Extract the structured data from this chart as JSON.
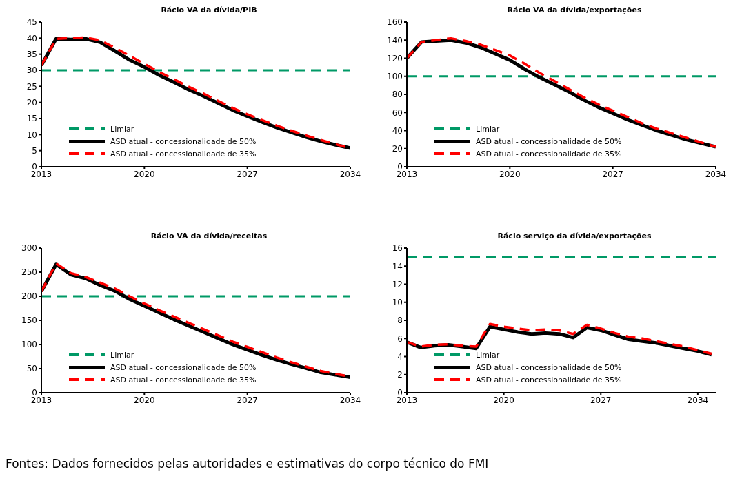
{
  "chart_data": [
    {
      "type": "line",
      "title": "Rácio VA da dívida/PIB",
      "x": [
        2013,
        2014,
        2015,
        2016,
        2017,
        2018,
        2019,
        2020,
        2021,
        2022,
        2023,
        2024,
        2025,
        2026,
        2027,
        2028,
        2029,
        2030,
        2031,
        2032,
        2033,
        2034
      ],
      "xlim": [
        2013,
        2034
      ],
      "xticks": [
        2013,
        2020,
        2027,
        2034
      ],
      "ylim": [
        0,
        45
      ],
      "yticks": [
        0,
        5,
        10,
        15,
        20,
        25,
        30,
        35,
        40,
        45
      ],
      "grid": false,
      "marker": "none",
      "legend": "bottom left",
      "ref_lines": [
        {
          "axis": "y",
          "value": 30,
          "label": "Limiar",
          "color": "#009966",
          "line_style": "dashed"
        }
      ],
      "series": [
        {
          "name": "ASD atual - concessionalidade de 50%",
          "color": "#000000",
          "line_style": "solid",
          "values": [
            31.5,
            39.8,
            39.6,
            39.8,
            38.7,
            36,
            33.2,
            31,
            28.5,
            26.3,
            24,
            22,
            19.8,
            17.6,
            15.7,
            13.9,
            12.2,
            10.7,
            9.2,
            7.9,
            6.8,
            5.8
          ]
        },
        {
          "name": "ASD atual - concessionalidade de 35%",
          "color": "#ff0000",
          "line_style": "dashed",
          "values": [
            31.5,
            39.8,
            40,
            40.2,
            39.3,
            37,
            34.5,
            32,
            29.5,
            27.2,
            24.9,
            22.8,
            20.5,
            18.3,
            16.3,
            14.5,
            12.8,
            11.2,
            9.7,
            8.3,
            7,
            5.8
          ]
        }
      ]
    },
    {
      "type": "line",
      "title": "Rácio VA da dívida/exportações",
      "x": [
        2013,
        2014,
        2015,
        2016,
        2017,
        2018,
        2019,
        2020,
        2021,
        2022,
        2023,
        2024,
        2025,
        2026,
        2027,
        2028,
        2029,
        2030,
        2031,
        2032,
        2033,
        2034
      ],
      "xlim": [
        2013,
        2034
      ],
      "xticks": [
        2013,
        2020,
        2027,
        2034
      ],
      "ylim": [
        0,
        160
      ],
      "yticks": [
        0,
        20,
        40,
        60,
        80,
        100,
        120,
        140,
        160
      ],
      "grid": false,
      "marker": "none",
      "legend": "bottom left",
      "ref_lines": [
        {
          "axis": "y",
          "value": 100,
          "label": "Limiar",
          "color": "#009966",
          "line_style": "dashed"
        }
      ],
      "series": [
        {
          "name": "ASD atual - concessionalidade de 50%",
          "color": "#000000",
          "line_style": "solid",
          "values": [
            120,
            138,
            139,
            140,
            137,
            132,
            125,
            118,
            108,
            99,
            91,
            83,
            74,
            66,
            59,
            52,
            46,
            40,
            35,
            30,
            26,
            22
          ]
        },
        {
          "name": "ASD atual - concessionalidade de 35%",
          "color": "#ff0000",
          "line_style": "dashed",
          "values": [
            120,
            138,
            140,
            142,
            139,
            135,
            129,
            123,
            114,
            104,
            95,
            86,
            77,
            69,
            62,
            55,
            48,
            42,
            37,
            32,
            27,
            22
          ]
        }
      ]
    },
    {
      "type": "line",
      "title": "Rácio VA da dívida/receitas",
      "x": [
        2013,
        2014,
        2015,
        2016,
        2017,
        2018,
        2019,
        2020,
        2021,
        2022,
        2023,
        2024,
        2025,
        2026,
        2027,
        2028,
        2029,
        2030,
        2031,
        2032,
        2033,
        2034
      ],
      "xlim": [
        2013,
        2034
      ],
      "xticks": [
        2013,
        2020,
        2027,
        2034
      ],
      "ylim": [
        0,
        300
      ],
      "yticks": [
        0,
        50,
        100,
        150,
        200,
        250,
        300
      ],
      "grid": false,
      "marker": "none",
      "legend": "bottom left",
      "ref_lines": [
        {
          "axis": "y",
          "value": 200,
          "label": "Limiar",
          "color": "#009966",
          "line_style": "dashed"
        }
      ],
      "series": [
        {
          "name": "ASD atual - concessionalidade de 50%",
          "color": "#000000",
          "line_style": "solid",
          "values": [
            210,
            266,
            245,
            237,
            223,
            211,
            194,
            180,
            166,
            152,
            139,
            126,
            113,
            100,
            89,
            78,
            68,
            59,
            51,
            42,
            37,
            32
          ]
        },
        {
          "name": "ASD atual - concessionalidade de 35%",
          "color": "#ff0000",
          "line_style": "dashed",
          "values": [
            210,
            268,
            248,
            240,
            228,
            216,
            200,
            185,
            171,
            158,
            145,
            132,
            119,
            106,
            95,
            84,
            73,
            63,
            54,
            45,
            39,
            33
          ]
        }
      ]
    },
    {
      "type": "line",
      "title": "Rácio serviço da dívida/exportações",
      "x": [
        2013,
        2014,
        2015,
        2016,
        2017,
        2018,
        2019,
        2020,
        2021,
        2022,
        2023,
        2024,
        2025,
        2026,
        2027,
        2028,
        2029,
        2030,
        2031,
        2032,
        2033,
        2034,
        2035
      ],
      "xlim": [
        2013,
        2035.3
      ],
      "xticks": [
        2013,
        2020,
        2027,
        2034
      ],
      "ylim": [
        0,
        16
      ],
      "yticks": [
        0,
        2,
        4,
        6,
        8,
        10,
        12,
        14,
        16
      ],
      "grid": false,
      "marker": "none",
      "legend": "bottom left",
      "ref_lines": [
        {
          "axis": "y",
          "value": 15,
          "label": "Limiar",
          "color": "#009966",
          "line_style": "dashed"
        }
      ],
      "annotations": [
        "Fontes: Dados fornecidos pelas autoridades e estimativas do corpo técnico do FMI"
      ],
      "series": [
        {
          "name": "ASD atual - concessionalidade de 50%",
          "color": "#000000",
          "line_style": "solid",
          "values": [
            5.6,
            5.0,
            5.2,
            5.3,
            5.1,
            4.9,
            7.3,
            7.0,
            6.7,
            6.5,
            6.6,
            6.5,
            6.1,
            7.2,
            6.9,
            6.4,
            5.9,
            5.7,
            5.5,
            5.2,
            4.9,
            4.6,
            4.2
          ]
        },
        {
          "name": "ASD atual - concessionalidade de 35%",
          "color": "#ff0000",
          "line_style": "dashed",
          "values": [
            5.6,
            5.1,
            5.3,
            5.35,
            5.2,
            5.1,
            7.6,
            7.3,
            7.1,
            6.9,
            7.0,
            6.9,
            6.5,
            7.5,
            7.1,
            6.6,
            6.2,
            6.0,
            5.7,
            5.4,
            5.1,
            4.7,
            4.3
          ]
        }
      ]
    }
  ]
}
